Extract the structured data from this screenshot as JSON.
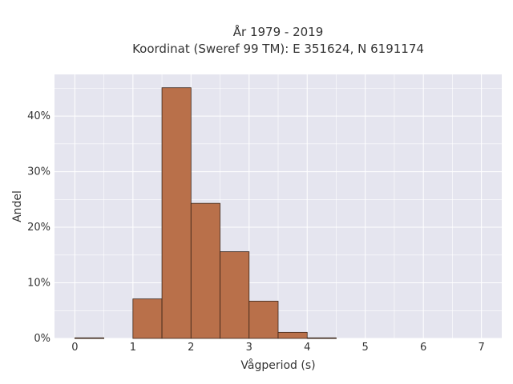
{
  "chart_data": {
    "type": "bar",
    "title": "År 1979 - 2019",
    "subtitle": "Koordinat (Sweref 99 TM): E 351624, N 6191174",
    "xlabel": "Vågperiod (s)",
    "ylabel": "Andel",
    "xlim": [
      -0.35,
      7.35
    ],
    "ylim": [
      0,
      47.5
    ],
    "x_ticks": [
      0,
      1,
      2,
      3,
      4,
      5,
      6,
      7
    ],
    "x_tick_labels": [
      "0",
      "1",
      "2",
      "3",
      "4",
      "5",
      "6",
      "7"
    ],
    "y_ticks": [
      0,
      10,
      20,
      30,
      40
    ],
    "y_tick_labels": [
      "0%",
      "10%",
      "20%",
      "30%",
      "40%"
    ],
    "bin_width": 0.5,
    "bins": [
      {
        "start": 0.0,
        "value": 0.1
      },
      {
        "start": 0.5,
        "value": 0.0
      },
      {
        "start": 1.0,
        "value": 7.1
      },
      {
        "start": 1.5,
        "value": 45.1
      },
      {
        "start": 2.0,
        "value": 24.3
      },
      {
        "start": 2.5,
        "value": 15.6
      },
      {
        "start": 3.0,
        "value": 6.7
      },
      {
        "start": 3.5,
        "value": 1.1
      },
      {
        "start": 4.0,
        "value": 0.1
      }
    ],
    "grid": true,
    "colors": {
      "bar_fill": "#b9704a",
      "bar_edge": "#3a2418",
      "plot_background": "#e5e5ef",
      "grid": "#ffffff"
    }
  }
}
